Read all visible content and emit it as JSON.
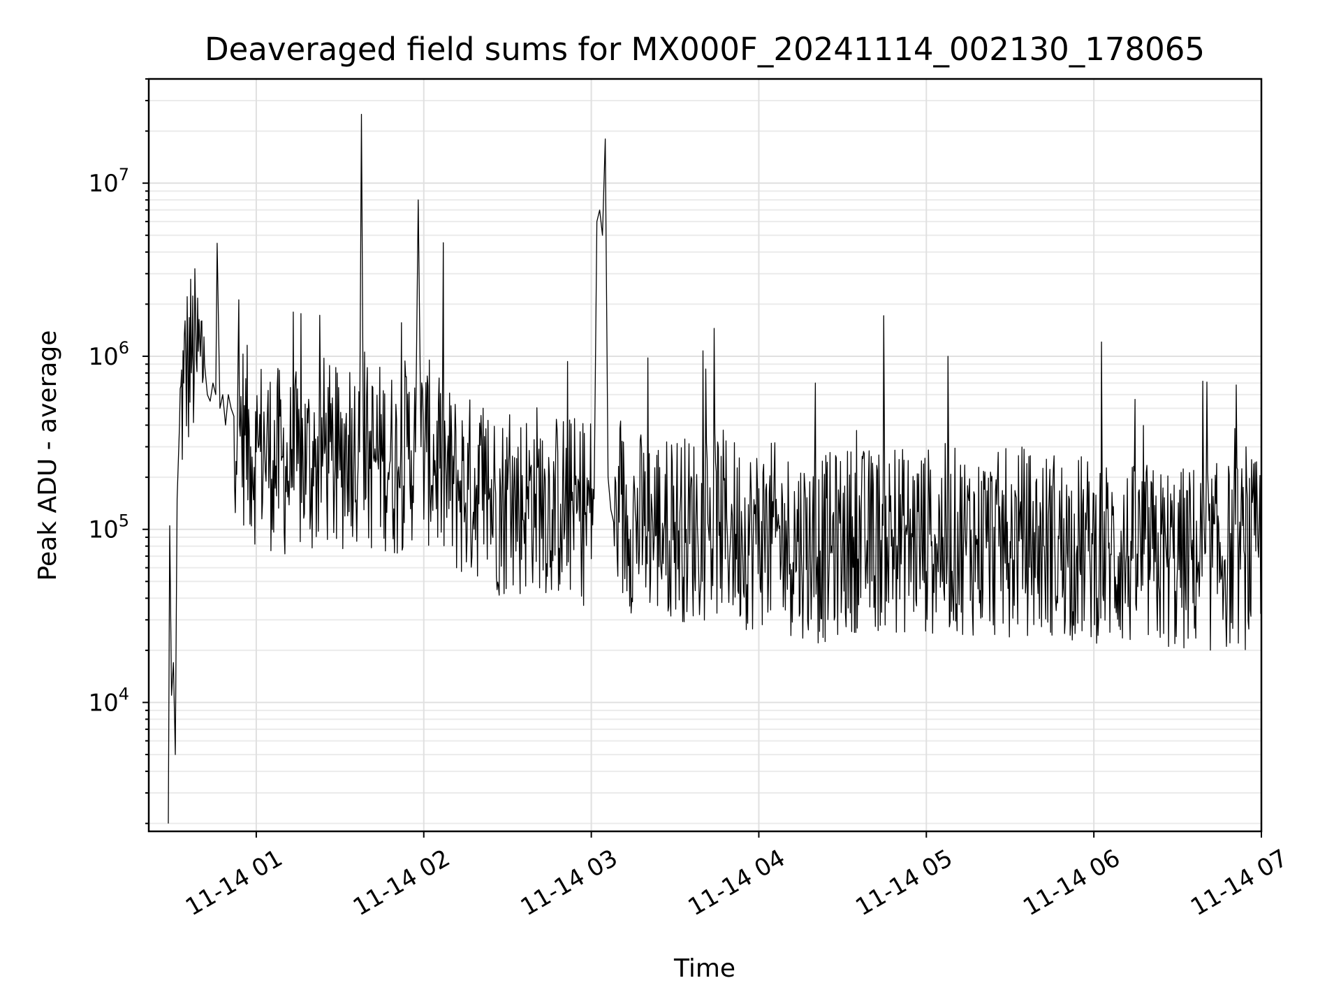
{
  "chart_data": {
    "type": "line",
    "title": "Deaveraged field sums for MX000F_20241114_002130_178065",
    "xlabel": "Time",
    "ylabel": "Peak ADU - average",
    "y_scale": "log",
    "xlim": [
      "2024-11-14 00:21:30",
      "2024-11-14 07:00:00"
    ],
    "ylim": [
      1800,
      40000000
    ],
    "x_tick_labels": [
      "11-14 01",
      "11-14 02",
      "11-14 03",
      "11-14 04",
      "11-14 05",
      "11-14 06",
      "11-14 07"
    ],
    "x_ticks": [
      "2024-11-14 01:00",
      "2024-11-14 02:00",
      "2024-11-14 03:00",
      "2024-11-14 04:00",
      "2024-11-14 05:00",
      "2024-11-14 06:00",
      "2024-11-14 07:00"
    ],
    "y_tick_labels": [
      {
        "value": 10000,
        "base": "10",
        "exp": "4"
      },
      {
        "value": 100000,
        "base": "10",
        "exp": "5"
      },
      {
        "value": 1000000,
        "base": "10",
        "exp": "6"
      },
      {
        "value": 10000000,
        "base": "10",
        "exp": "7"
      }
    ],
    "grid": true,
    "series": [
      {
        "color": "#000000",
        "x": [
          "00:28:30",
          "00:29:00",
          "00:29:40",
          "00:30:20",
          "00:31:00",
          "00:31:40",
          "00:32:30",
          "00:34:00",
          "00:35:30",
          "00:37:00",
          "00:38:30",
          "00:40:00",
          "00:41:30",
          "00:42:30",
          "00:43:30",
          "00:44:30",
          "00:45:30",
          "00:46:00",
          "00:47:00",
          "00:48:00",
          "00:49:00",
          "00:50:00",
          "00:51:00",
          "00:52:00",
          "00:54:00",
          "00:56:00",
          "00:58:00",
          "01:00:00",
          "01:03:00",
          "01:06:00",
          "01:09:00",
          "01:12:00",
          "01:15:00",
          "01:18:00",
          "01:21:00",
          "01:24:00",
          "01:27:00",
          "01:30:00",
          "01:33:00",
          "01:35:00",
          "01:37:00",
          "01:37:40",
          "01:38:20",
          "01:40:00",
          "01:42:00",
          "01:45:00",
          "01:48:00",
          "01:51:00",
          "01:54:00",
          "01:57:00",
          "01:58:00",
          "01:59:00",
          "02:01:00",
          "02:04:00",
          "02:08:00",
          "02:12:00",
          "02:16:00",
          "02:19:00",
          "02:22:00",
          "02:25:00",
          "02:28:00",
          "02:31:00",
          "02:34:00",
          "02:37:00",
          "02:40:00",
          "02:43:00",
          "02:46:00",
          "02:49:00",
          "02:52:00",
          "02:55:00",
          "02:58:00",
          "03:01:00",
          "03:02:00",
          "03:03:00",
          "03:04:00",
          "03:05:00",
          "03:06:00",
          "03:07:00",
          "03:08:00",
          "03:10:00",
          "03:13:00",
          "03:16:00",
          "03:19:00",
          "03:22:00",
          "03:26:00",
          "03:30:00",
          "03:34:00",
          "03:38:00",
          "03:42:00",
          "03:46:00",
          "03:50:00",
          "03:54:00",
          "03:58:00",
          "04:02:00",
          "04:06:00",
          "04:10:00",
          "04:14:00",
          "04:18:00",
          "04:22:00",
          "04:26:00",
          "04:30:00",
          "04:34:00",
          "04:38:00",
          "04:42:00",
          "04:46:00",
          "04:50:00",
          "04:54:00",
          "04:58:00",
          "05:02:00",
          "05:06:00",
          "05:10:00",
          "05:14:00",
          "05:18:00",
          "05:22:00",
          "05:26:00",
          "05:30:00",
          "05:34:00",
          "05:38:00",
          "05:42:00",
          "05:46:00",
          "05:50:00",
          "05:54:00",
          "05:58:00",
          "06:02:00",
          "06:06:00",
          "06:10:00",
          "06:14:00",
          "06:18:00",
          "06:22:00",
          "06:26:00",
          "06:30:00",
          "06:34:00",
          "06:38:00",
          "06:42:00",
          "06:46:00",
          "06:50:00",
          "06:54:00",
          "06:58:00",
          "07:00:00"
        ],
        "y": [
          2000,
          105000,
          11000,
          17000,
          5000,
          150000,
          400000,
          700000,
          900000,
          1000000,
          950000,
          1000000,
          900000,
          600000,
          550000,
          700000,
          600000,
          4500000,
          500000,
          600000,
          400000,
          600000,
          500000,
          450000,
          400000,
          350000,
          300000,
          280000,
          300000,
          250000,
          250000,
          220000,
          240000,
          250000,
          230000,
          300000,
          250000,
          220000,
          350000,
          300000,
          280000,
          25000000,
          400000,
          250000,
          260000,
          270000,
          250000,
          230000,
          300000,
          280000,
          8000000,
          300000,
          280000,
          250000,
          200000,
          180000,
          170000,
          180000,
          160000,
          150000,
          140000,
          145000,
          140000,
          150000,
          160000,
          150000,
          130000,
          140000,
          135000,
          130000,
          125000,
          150000,
          6000000,
          7000000,
          5000000,
          18000000,
          200000,
          130000,
          110000,
          110000,
          120000,
          110000,
          105000,
          110000,
          100000,
          110000,
          100000,
          105000,
          100000,
          110000,
          100000,
          95000,
          90000,
          95000,
          90000,
          85000,
          85000,
          80000,
          75000,
          80000,
          85000,
          90000,
          85000,
          88000,
          90000,
          85000,
          88000,
          90000,
          85000,
          90000,
          85000,
          88000,
          82000,
          85000,
          80000,
          85000,
          88000,
          82000,
          80000,
          85000,
          78000,
          80000,
          75000,
          78000,
          72000,
          70000,
          68000,
          72000,
          65000,
          70000,
          65000,
          68000,
          70000,
          68000,
          70000,
          72000,
          70000,
          75000,
          80000
        ]
      }
    ]
  }
}
